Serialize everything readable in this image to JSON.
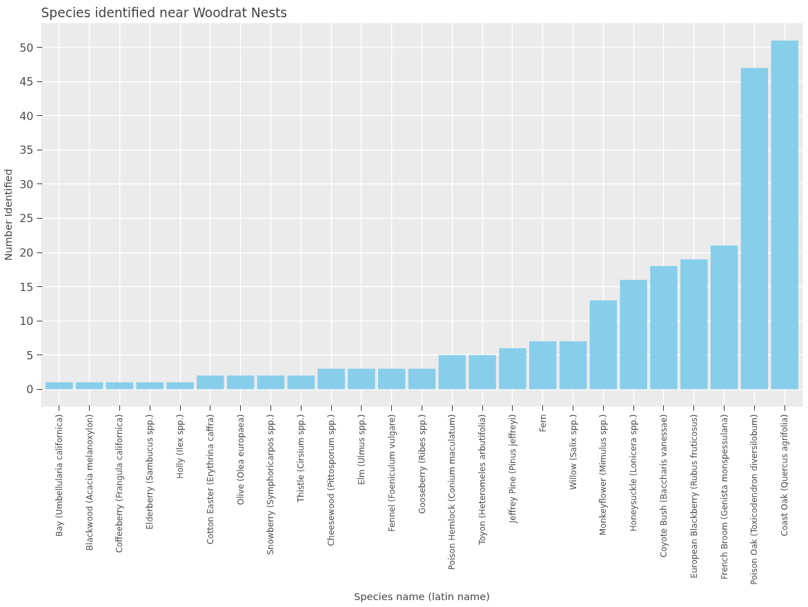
{
  "chart_data": {
    "type": "bar",
    "title": "Species identified near Woodrat Nests",
    "xlabel": "Species name (latin name)",
    "ylabel": "Number Identified",
    "categories": [
      "Bay (Umbellularia californica)",
      "Blackwood (Acacia melanoxylon)",
      "Coffeeberry (Frangula californica)",
      "Elderberry (Sambucus spp.)",
      "Holly (Ilex spp.)",
      "Cotton Easter (Erythrina caffra)",
      "Olive (Olea europaea)",
      "Snowberry (Symphoricarpos spp.)",
      "Thistle (Cirsium spp.)",
      "Cheesewood (Pittosporum spp.)",
      "Elm (Ulmus spp.)",
      "Fennel (Foeniculum vulgare)",
      "Gooseberry (Ribes spp.)",
      "Poison Hemlock (Conium maculatum)",
      "Toyon (Heteromeles arbutifolia)",
      "Jeffrey Pine (Pinus jeffreyi)",
      "Fern",
      "Willow (Salix spp.)",
      "Monkeyflower (Mimulus spp.)",
      "Honeysuckle (Lonicera spp.)",
      "Coyote Bush (Baccharis vanessae)",
      "European Blackberry (Rubus fruticosus)",
      "French Broom (Genista monspessulana)",
      "Poison Oak (Toxicodendron diversilobum)",
      "Coast Oak (Quercus agrifolia)"
    ],
    "values": [
      1,
      1,
      1,
      1,
      1,
      2,
      2,
      2,
      2,
      3,
      3,
      3,
      3,
      5,
      5,
      6,
      7,
      7,
      13,
      16,
      18,
      19,
      21,
      47,
      51
    ],
    "color": "#87ceeb",
    "ylim": [
      -2.55,
      53.55
    ],
    "yticks": [
      0,
      5,
      10,
      15,
      20,
      25,
      30,
      35,
      40,
      45,
      50
    ],
    "grid": true
  }
}
